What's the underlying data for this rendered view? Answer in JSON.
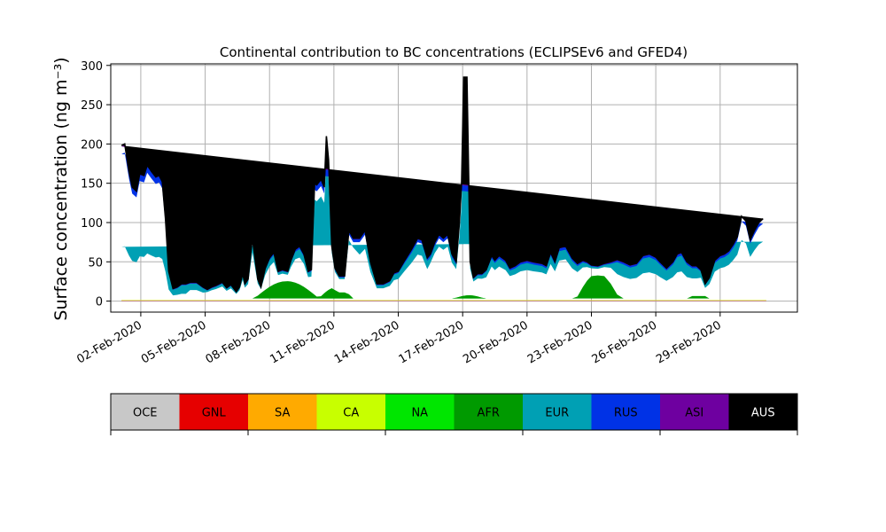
{
  "chart_data": {
    "type": "area",
    "title": "Continental contribution to BC concentrations (ECLIPSEv6 and GFED4)",
    "ylabel": "Surface concentration (ng m⁻³)",
    "xlabel": "",
    "ylim": [
      -14,
      302
    ],
    "y_ticks": [
      0,
      50,
      100,
      150,
      200,
      250,
      300
    ],
    "x_ticks": [
      {
        "day": 2,
        "label": "02-Feb-2020"
      },
      {
        "day": 5,
        "label": "05-Feb-2020"
      },
      {
        "day": 8,
        "label": "08-Feb-2020"
      },
      {
        "day": 11,
        "label": "11-Feb-2020"
      },
      {
        "day": 14,
        "label": "14-Feb-2020"
      },
      {
        "day": 17,
        "label": "17-Feb-2020"
      },
      {
        "day": 20,
        "label": "20-Feb-2020"
      },
      {
        "day": 23,
        "label": "23-Feb-2020"
      },
      {
        "day": 26,
        "label": "26-Feb-2020"
      },
      {
        "day": 29,
        "label": "29-Feb-2020"
      }
    ],
    "xlim_days": [
      0.6,
      32.6
    ],
    "grid": true,
    "stacking": "stacked",
    "day": [
      1.1,
      1.25,
      1.45,
      1.6,
      1.8,
      1.95,
      2.15,
      2.3,
      2.5,
      2.7,
      2.85,
      3.0,
      3.15,
      3.3,
      3.5,
      3.7,
      3.9,
      4.1,
      4.3,
      4.6,
      4.9,
      5.1,
      5.3,
      5.5,
      5.8,
      6.0,
      6.2,
      6.45,
      6.6,
      6.75,
      6.85,
      7.0,
      7.2,
      7.45,
      7.6,
      7.8,
      8.0,
      8.2,
      8.4,
      8.6,
      8.85,
      9.0,
      9.2,
      9.4,
      9.6,
      9.8,
      9.95,
      10.1,
      10.2,
      10.4,
      10.55,
      10.65,
      10.75,
      10.9,
      11.05,
      11.25,
      11.5,
      11.7,
      11.9,
      12.2,
      12.45,
      12.7,
      13.0,
      13.3,
      13.6,
      13.8,
      14.0,
      14.3,
      14.6,
      14.9,
      15.1,
      15.35,
      15.5,
      15.7,
      15.9,
      16.1,
      16.3,
      16.5,
      16.7,
      16.85,
      16.95,
      17.05,
      17.2,
      17.35,
      17.5,
      17.7,
      17.9,
      18.1,
      18.35,
      18.5,
      18.7,
      19.0,
      19.2,
      19.45,
      19.7,
      20.0,
      20.3,
      20.5,
      20.7,
      20.9,
      21.1,
      21.3,
      21.5,
      21.8,
      22.1,
      22.35,
      22.6,
      22.8,
      23.0,
      23.3,
      23.6,
      23.9,
      24.2,
      24.5,
      24.8,
      25.1,
      25.4,
      25.7,
      26.0,
      26.2,
      26.5,
      26.8,
      27.0,
      27.2,
      27.45,
      27.7,
      27.9,
      28.1,
      28.3,
      28.5,
      28.75,
      29.0,
      29.2,
      29.4,
      29.6,
      29.8,
      30.0,
      30.2,
      30.4,
      30.6,
      30.8,
      31.0,
      31.15
    ],
    "totals": [
      198,
      200,
      165,
      145,
      140,
      162,
      160,
      173,
      165,
      158,
      160,
      152,
      105,
      38,
      16,
      18,
      22,
      22,
      24,
      24,
      18,
      15,
      18,
      20,
      24,
      17,
      21,
      12,
      18,
      35,
      22,
      28,
      80,
      28,
      18,
      42,
      55,
      62,
      38,
      40,
      38,
      52,
      66,
      70,
      60,
      38,
      40,
      150,
      148,
      155,
      145,
      210,
      180,
      70,
      42,
      32,
      32,
      90,
      80,
      80,
      90,
      50,
      22,
      22,
      26,
      36,
      38,
      52,
      65,
      80,
      78,
      55,
      60,
      75,
      85,
      80,
      85,
      60,
      50,
      100,
      150,
      285,
      285,
      50,
      30,
      35,
      35,
      40,
      58,
      52,
      58,
      52,
      42,
      45,
      50,
      52,
      50,
      49,
      48,
      45,
      62,
      50,
      68,
      70,
      55,
      48,
      52,
      50,
      46,
      45,
      48,
      50,
      53,
      50,
      46,
      48,
      58,
      60,
      56,
      50,
      42,
      50,
      60,
      62,
      50,
      45,
      45,
      40,
      22,
      30,
      52,
      58,
      60,
      64,
      72,
      82,
      108,
      102,
      78,
      90,
      100,
      105
    ],
    "series": [
      {
        "name": "OCE",
        "color": "#c8c8c8"
      },
      {
        "name": "GNL",
        "color": "#e60000"
      },
      {
        "name": "SA",
        "color": "#ffaa00"
      },
      {
        "name": "CA",
        "color": "#c8ff00"
      },
      {
        "name": "NA",
        "color": "#00e600"
      },
      {
        "name": "AFR",
        "color": "#009a00"
      },
      {
        "name": "EUR",
        "color": "#00a0b4"
      },
      {
        "name": "RUS",
        "color": "#0032e6"
      },
      {
        "name": "ASI",
        "color": "#6e00a0"
      },
      {
        "name": "AUS",
        "color": "#000000"
      }
    ],
    "legend": "colorbar-below",
    "colorbar": {
      "labels": [
        "OCE",
        "GNL",
        "SA",
        "CA",
        "NA",
        "AFR",
        "EUR",
        "RUS",
        "ASI",
        "AUS"
      ],
      "colors": [
        "#c8c8c8",
        "#e60000",
        "#ffaa00",
        "#c8ff00",
        "#00e600",
        "#009a00",
        "#00a0b4",
        "#0032e6",
        "#6e00a0",
        "#000000"
      ],
      "label_colors": [
        "#000000",
        "#000000",
        "#000000",
        "#000000",
        "#000000",
        "#000000",
        "#000000",
        "#000000",
        "#000000",
        "#ffffff"
      ]
    }
  }
}
